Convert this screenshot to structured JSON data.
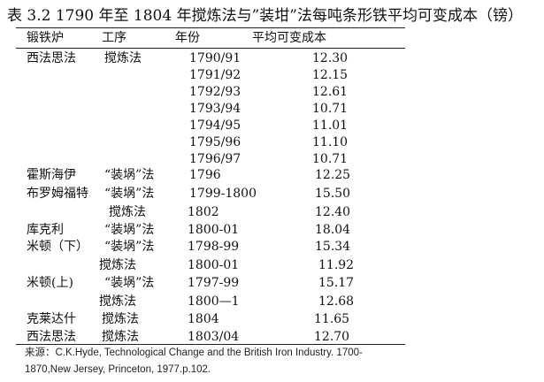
{
  "title": "表 3.2 1790 年至 1804 年搅炼法与”装坩”法每吨条形铁平均可变成本（镑）",
  "headers": {
    "works": "锻铁炉",
    "process": "工序",
    "year": "年份",
    "cost": "平均可变成本"
  },
  "rows": [
    {
      "works": "西法思法",
      "process": "搅炼法",
      "year": "1790/91",
      "cost": "12.30"
    },
    {
      "works": "",
      "process": "",
      "year": "1791/92",
      "cost": "12.15"
    },
    {
      "works": "",
      "process": "",
      "year": "1792/93",
      "cost": "12.61"
    },
    {
      "works": "",
      "process": "",
      "year": "1793/94",
      "cost": "10.71"
    },
    {
      "works": "",
      "process": "",
      "year": "1794/95",
      "cost": "11.01"
    },
    {
      "works": "",
      "process": "",
      "year": "1795/96",
      "cost": "11.10"
    },
    {
      "works": "",
      "process": "",
      "year": "1796/97",
      "cost": "10.71"
    },
    {
      "works": "霍斯海伊",
      "process": "“装埚”法",
      "year": "1796",
      "cost": "12.25"
    },
    {
      "works": "布罗姆福特",
      "process": "“装埚”法",
      "year": "1799-1800",
      "cost": "15.50"
    },
    {
      "works": "",
      "process": "搅炼法",
      "year": "1802",
      "cost": "12.40"
    },
    {
      "works": "库克利",
      "process": "“装埚”法",
      "year": "1800-01",
      "cost": "18.04"
    },
    {
      "works": "米顿（下）",
      "process": "“装埚”法",
      "year": "1798-99",
      "cost": "15.34"
    },
    {
      "works": "",
      "process": "搅炼法",
      "year": "1800-01",
      "cost": "11.92"
    },
    {
      "works": "米顿(上)",
      "process": "“装埚”法",
      "year": "1797-99",
      "cost": "15.17"
    },
    {
      "works": "",
      "process": "搅炼法",
      "year": "1800—1",
      "cost": "12.68"
    },
    {
      "works": "克莱达什",
      "process": "搅炼法",
      "year": "1804",
      "cost": "11.65"
    },
    {
      "works": "西法思法",
      "process": "搅炼法",
      "year": "1803/04",
      "cost": "12.70"
    }
  ],
  "source_line1": "来源：C.K.Hyde, Technological Change and the British Iron Industry. 1700-",
  "source_line2": "1870,New Jersey, Princeton, 1977.p.102."
}
